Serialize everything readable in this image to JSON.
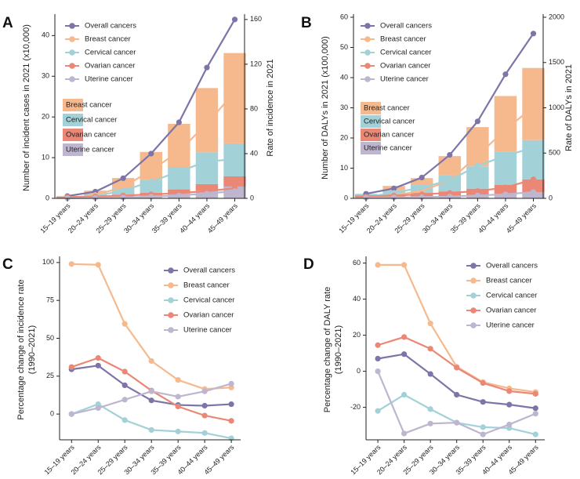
{
  "colors": {
    "overall": "#7D74A8",
    "breast": "#F6B98E",
    "cervical": "#A2D1D7",
    "ovarian": "#EA8775",
    "uterine": "#BEB5CF"
  },
  "chart_data": [
    {
      "panel": "A",
      "type": "bar+line",
      "categories": [
        "15–19 years",
        "20–24 years",
        "25–29 years",
        "30–34 years",
        "35–39 years",
        "40–44 years",
        "45–49 years"
      ],
      "ylabel": "Number of incident cases in 2021 (x10,000)",
      "y2label": "Rate of incidence in 2021",
      "ylim": [
        0,
        44.5
      ],
      "yticks": [
        0,
        10,
        20,
        30,
        40
      ],
      "y2lim": [
        0,
        162
      ],
      "y2ticks": [
        0,
        40,
        80,
        120,
        160
      ],
      "bars": [
        {
          "name": "Uterine cancer",
          "key": "uterine",
          "values": [
            0.1,
            0.2,
            0.4,
            0.7,
            1.2,
            1.9,
            2.9
          ]
        },
        {
          "name": "Ovarian cancer",
          "key": "ovarian",
          "values": [
            0.3,
            0.4,
            0.5,
            0.7,
            1.0,
            1.6,
            2.5
          ]
        },
        {
          "name": "Cervical cancer",
          "key": "cervical",
          "values": [
            0.1,
            0.6,
            1.6,
            3.1,
            5.5,
            7.8,
            8.1
          ]
        },
        {
          "name": "Breast cancer",
          "key": "breast",
          "values": [
            0.1,
            0.7,
            2.5,
            6.9,
            10.6,
            15.8,
            22.2
          ]
        }
      ],
      "lines": [
        {
          "name": "Overall cancers",
          "key": "overall",
          "values": [
            2,
            6,
            18,
            40,
            68,
            117,
            160
          ]
        },
        {
          "name": "Breast cancer",
          "key": "breast",
          "values": [
            0.1,
            3,
            10,
            25,
            42,
            67,
            95
          ]
        },
        {
          "name": "Cervical cancer",
          "key": "cervical",
          "values": [
            0.1,
            2,
            7,
            15,
            24,
            33,
            35
          ]
        },
        {
          "name": "Ovarian cancer",
          "key": "ovarian",
          "values": [
            1.2,
            1.6,
            2.5,
            3.5,
            4.6,
            6.5,
            9
          ]
        },
        {
          "name": "Uterine cancer",
          "key": "uterine",
          "values": [
            0.2,
            0.4,
            0.8,
            1.5,
            2.6,
            4.3,
            6.5
          ]
        }
      ]
    },
    {
      "panel": "B",
      "type": "bar+line",
      "categories": [
        "15–19 years",
        "20–24 years",
        "25–29 years",
        "30–34 years",
        "35–39 years",
        "40–44 years",
        "45–49 years"
      ],
      "ylabel": "Number of DALYs in 2021 (x100,000)",
      "y2label": "Rate of DALYs in 2021",
      "ylim": [
        0,
        60
      ],
      "yticks": [
        0,
        10,
        20,
        30,
        40,
        50,
        60
      ],
      "y2lim": [
        0,
        2000
      ],
      "y2ticks": [
        0,
        500,
        1000,
        1500,
        2000
      ],
      "bars": [
        {
          "name": "Uterine cancer",
          "key": "uterine",
          "values": [
            0.2,
            0.3,
            0.5,
            0.7,
            1.0,
            1.5,
            2.0
          ]
        },
        {
          "name": "Ovarian cancer",
          "key": "ovarian",
          "values": [
            0.8,
            1.0,
            1.3,
            1.6,
            2.2,
            3.0,
            4.3
          ]
        },
        {
          "name": "Cervical cancer",
          "key": "cervical",
          "values": [
            0.3,
            1.4,
            2.6,
            5.4,
            7.4,
            11.0,
            13.0
          ]
        },
        {
          "name": "Breast cancer",
          "key": "breast",
          "values": [
            0.2,
            1.4,
            2.3,
            6.3,
            13.0,
            18.4,
            23.9
          ]
        }
      ],
      "lines": [
        {
          "name": "Overall cancers",
          "key": "overall",
          "values": [
            50,
            110,
            230,
            480,
            850,
            1370,
            1820
          ]
        },
        {
          "name": "Breast cancer",
          "key": "breast",
          "values": [
            6,
            35,
            80,
            200,
            470,
            760,
            1010
          ]
        },
        {
          "name": "Cervical cancer",
          "key": "cervical",
          "values": [
            15,
            60,
            120,
            200,
            360,
            470,
            560
          ]
        },
        {
          "name": "Ovarian cancer",
          "key": "ovarian",
          "values": [
            20,
            30,
            45,
            60,
            80,
            120,
            210
          ]
        },
        {
          "name": "Uterine cancer",
          "key": "uterine",
          "values": [
            8,
            10,
            14,
            20,
            32,
            45,
            70
          ]
        }
      ]
    },
    {
      "panel": "C",
      "type": "line",
      "categories": [
        "15–19 years",
        "20–24 years",
        "25–29 years",
        "30–34 years",
        "35–39 years",
        "40–44 years",
        "45–49 years"
      ],
      "ylabel": "Percentage change of incidence rate",
      "ylabel2": "(1990–2021)",
      "ylim": [
        -17,
        102
      ],
      "yticks": [
        0,
        25,
        50,
        75,
        100
      ],
      "lines": [
        {
          "name": "Overall cancers",
          "key": "overall",
          "values": [
            29.5,
            32,
            19,
            9,
            6,
            5.5,
            6.5
          ]
        },
        {
          "name": "Breast cancer",
          "key": "breast",
          "values": [
            99,
            98.5,
            59.5,
            35,
            22.5,
            16.5,
            17.5
          ]
        },
        {
          "name": "Cervical cancer",
          "key": "cervical",
          "values": [
            0,
            6.5,
            -4,
            -10.5,
            -11.5,
            -12.5,
            -16
          ]
        },
        {
          "name": "Ovarian cancer",
          "key": "ovarian",
          "values": [
            31,
            37,
            28,
            15.5,
            5,
            -1,
            -4.5
          ]
        },
        {
          "name": "Uterine cancer",
          "key": "uterine",
          "values": [
            0,
            4,
            9.5,
            15,
            11.5,
            15,
            20
          ]
        }
      ]
    },
    {
      "panel": "D",
      "type": "line",
      "categories": [
        "15–19 years",
        "20–24 years",
        "25–29 years",
        "30–34 years",
        "35–39 years",
        "40–44 years",
        "45–49 years"
      ],
      "ylabel": "Percentage change of DALY rate",
      "ylabel2": "(1990–2021)",
      "ylim": [
        -38,
        62
      ],
      "yticks": [
        -20,
        0,
        20,
        40,
        60
      ],
      "lines": [
        {
          "name": "Overall cancers",
          "key": "overall",
          "values": [
            7,
            9.5,
            -1.5,
            -13,
            -17,
            -18.5,
            -20.5
          ]
        },
        {
          "name": "Breast cancer",
          "key": "breast",
          "values": [
            59,
            59,
            26.5,
            2.5,
            -6,
            -9.5,
            -11.5
          ]
        },
        {
          "name": "Cervical cancer",
          "key": "cervical",
          "values": [
            -22,
            -13,
            -21,
            -28.5,
            -31,
            -31.5,
            -35
          ]
        },
        {
          "name": "Ovarian cancer",
          "key": "ovarian",
          "values": [
            14.5,
            19,
            12.5,
            2,
            -6.5,
            -11,
            -12.5
          ]
        },
        {
          "name": "Uterine cancer",
          "key": "uterine",
          "values": [
            0,
            -34.5,
            -29,
            -28.5,
            -35,
            -29.5,
            -23.5
          ]
        }
      ]
    }
  ]
}
